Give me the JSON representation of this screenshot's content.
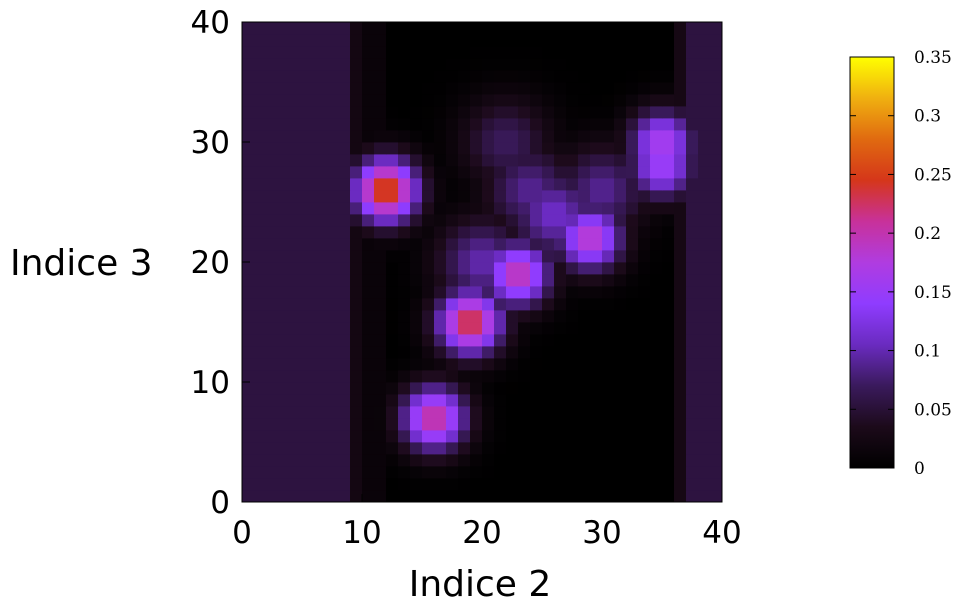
{
  "chart_data": {
    "type": "heatmap",
    "title": "",
    "xlabel": "Indice 2",
    "ylabel": "Indice 3",
    "xlim": [
      0,
      40
    ],
    "ylim": [
      0,
      40
    ],
    "grid_size": 40,
    "xticks": [
      0,
      10,
      20,
      30,
      40
    ],
    "yticks": [
      0,
      10,
      20,
      30,
      40
    ],
    "xtick_labels": [
      "0",
      "10",
      "20",
      "30",
      "40"
    ],
    "ytick_labels": [
      "0",
      "10",
      "20",
      "30",
      "40"
    ],
    "colorbar": {
      "range": [
        0,
        0.35
      ],
      "ticks": [
        0,
        0.05,
        0.1,
        0.15,
        0.2,
        0.25,
        0.3,
        0.35
      ],
      "tick_labels": [
        "0",
        "0.05",
        "0.1",
        "0.15",
        "0.2",
        "0.25",
        "0.3",
        "0.35"
      ],
      "colormap": [
        "#000000",
        "#1c0a1a",
        "#3a1a5c",
        "#6a2bc0",
        "#8f3cff",
        "#b03ce0",
        "#c8319a",
        "#d5361a",
        "#e06a10",
        "#f0b010",
        "#ffff00"
      ]
    },
    "background": {
      "left_band_x": [
        0,
        9
      ],
      "left_band_value": 0.055,
      "right_band_x": [
        37,
        40
      ],
      "right_band_value": 0.055,
      "interior_value": 0.0
    },
    "peaks": [
      {
        "x": 12,
        "y": 26,
        "value": 0.26
      },
      {
        "x": 16,
        "y": 7,
        "value": 0.21
      },
      {
        "x": 19,
        "y": 15,
        "value": 0.24
      },
      {
        "x": 23,
        "y": 19,
        "value": 0.2
      },
      {
        "x": 29,
        "y": 22,
        "value": 0.19
      },
      {
        "x": 35,
        "y": 30,
        "value": 0.17
      },
      {
        "x": 35,
        "y": 28,
        "value": 0.16
      }
    ],
    "ridges": [
      {
        "x": 26,
        "y": 24,
        "value": 0.11
      },
      {
        "x": 24,
        "y": 26,
        "value": 0.09
      },
      {
        "x": 22,
        "y": 30,
        "value": 0.07
      },
      {
        "x": 30,
        "y": 26,
        "value": 0.09
      },
      {
        "x": 20,
        "y": 20,
        "value": 0.1
      }
    ]
  }
}
